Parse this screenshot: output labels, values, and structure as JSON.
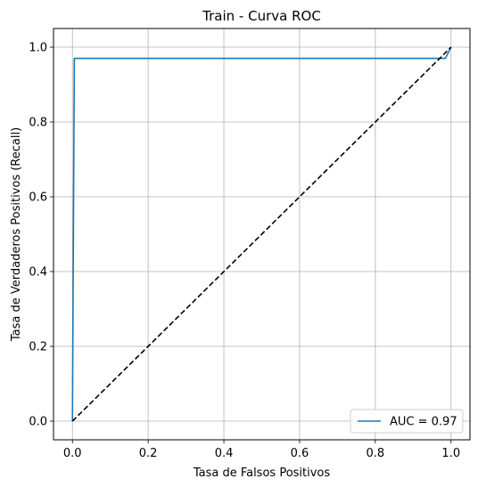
{
  "chart_data": {
    "type": "line",
    "title": "Train - Curva ROC",
    "xlabel": "Tasa de Falsos Positivos",
    "ylabel": "Tasa de Verdaderos Positivos (Recall)",
    "xlim": [
      -0.05,
      1.05
    ],
    "ylim": [
      -0.05,
      1.05
    ],
    "xticks": [
      0.0,
      0.2,
      0.4,
      0.6,
      0.8,
      1.0
    ],
    "yticks": [
      0.0,
      0.2,
      0.4,
      0.6,
      0.8,
      1.0
    ],
    "xtick_labels": [
      "0.0",
      "0.2",
      "0.4",
      "0.6",
      "0.8",
      "1.0"
    ],
    "ytick_labels": [
      "0.0",
      "0.2",
      "0.4",
      "0.6",
      "0.8",
      "1.0"
    ],
    "grid": true,
    "legend_position": "lower-right",
    "series": [
      {
        "name": "AUC = 0.97",
        "color": "#1f77b4",
        "style": "solid",
        "x": [
          0.0,
          0.0,
          0.005,
          0.985,
          0.985,
          1.0
        ],
        "y": [
          0.0,
          0.0,
          0.97,
          0.97,
          0.97,
          1.0
        ]
      },
      {
        "color": "#000000",
        "style": "dashed",
        "x": [
          0.0,
          1.0
        ],
        "y": [
          0.0,
          1.0
        ]
      }
    ]
  }
}
